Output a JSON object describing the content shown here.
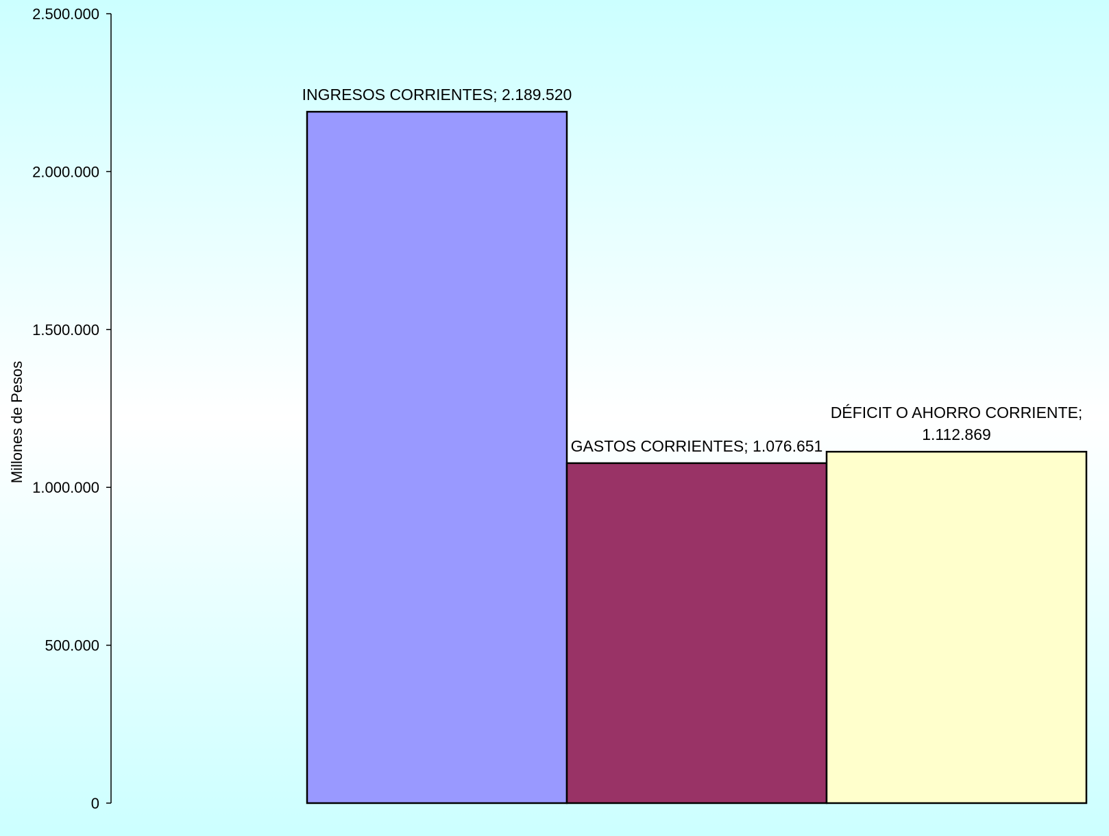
{
  "chart_data": {
    "type": "bar",
    "title": "",
    "xlabel": "",
    "ylabel": "Millones de Pesos",
    "ylim": [
      0,
      2500000
    ],
    "yticks": [
      0,
      500000,
      1000000,
      1500000,
      2000000,
      2500000
    ],
    "ytick_labels": [
      "0",
      "500.000",
      "1.000.000",
      "1.500.000",
      "2.000.000",
      "2.500.000"
    ],
    "grid": false,
    "legend": "none",
    "categories": [
      "INGRESOS CORRIENTES",
      "GASTOS CORRIENTES",
      "DÉFICIT O AHORRO CORRIENTE"
    ],
    "values": [
      2189520,
      1076651,
      1112869
    ],
    "data_labels": [
      [
        "INGRESOS CORRIENTES; 2.189.520"
      ],
      [
        "GASTOS CORRIENTES; 1.076.651"
      ],
      [
        "DÉFICIT O AHORRO CORRIENTE;",
        "1.112.869"
      ]
    ],
    "colors": [
      "#9999ff",
      "#993366",
      "#ffffcc"
    ],
    "border_color": "#000000"
  }
}
